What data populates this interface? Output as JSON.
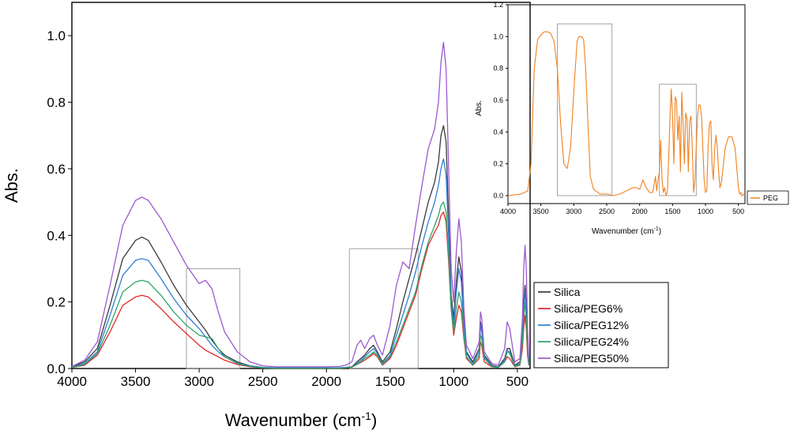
{
  "chart_data": [
    {
      "type": "line",
      "title": "",
      "xlabel": "Wavenumber (cm",
      "xlabel_sup": "-1",
      "xlabel_end": ")",
      "ylabel": "Abs.",
      "xlim": [
        4000,
        400
      ],
      "ylim": [
        0,
        1.1
      ],
      "x_reversed": true,
      "grid": false,
      "legend": "right",
      "xticks": [
        "4000",
        "3500",
        "3000",
        "2500",
        "2000",
        "1500",
        "1000",
        "500"
      ],
      "xtick_values": [
        4000,
        3500,
        3000,
        2500,
        2000,
        1500,
        1000,
        500
      ],
      "yticks": [
        "0.0",
        "0.2",
        "0.4",
        "0.6",
        "0.8",
        "1.0"
      ],
      "ytick_values": [
        0,
        0.2,
        0.4,
        0.6,
        0.8,
        1.0
      ],
      "highlight_regions": [
        {
          "x": [
            3100,
            2680
          ],
          "y": [
            0,
            0.3
          ]
        },
        {
          "x": [
            1820,
            1280
          ],
          "y": [
            0,
            0.36
          ]
        }
      ],
      "x": [
        4000,
        3900,
        3800,
        3700,
        3600,
        3500,
        3450,
        3400,
        3300,
        3200,
        3100,
        3000,
        2950,
        2900,
        2850,
        2800,
        2700,
        2600,
        2500,
        2400,
        2000,
        1900,
        1850,
        1800,
        1760,
        1730,
        1700,
        1660,
        1630,
        1600,
        1560,
        1500,
        1450,
        1400,
        1350,
        1300,
        1250,
        1200,
        1150,
        1120,
        1100,
        1080,
        1060,
        1040,
        1020,
        1000,
        980,
        960,
        940,
        920,
        900,
        850,
        800,
        790,
        780,
        760,
        700,
        650,
        600,
        580,
        560,
        520,
        480,
        460,
        450,
        440,
        430,
        420,
        410
      ],
      "series": [
        {
          "name": "Silica",
          "color": "#3a3a3a",
          "values": [
            0.005,
            0.02,
            0.06,
            0.19,
            0.33,
            0.385,
            0.395,
            0.385,
            0.32,
            0.25,
            0.19,
            0.14,
            0.115,
            0.085,
            0.06,
            0.04,
            0.02,
            0.008,
            0.003,
            0.002,
            0.002,
            0.002,
            0.003,
            0.005,
            0.02,
            0.03,
            0.04,
            0.06,
            0.07,
            0.05,
            0.02,
            0.05,
            0.12,
            0.2,
            0.27,
            0.34,
            0.42,
            0.5,
            0.56,
            0.62,
            0.7,
            0.73,
            0.68,
            0.45,
            0.22,
            0.15,
            0.26,
            0.335,
            0.29,
            0.14,
            0.05,
            0.02,
            0.06,
            0.14,
            0.12,
            0.04,
            0.01,
            0.005,
            0.03,
            0.06,
            0.06,
            0.01,
            0.02,
            0.1,
            0.2,
            0.25,
            0.2,
            0.08,
            0.02
          ]
        },
        {
          "name": "Silica/PEG6%",
          "color": "#e4282a",
          "values": [
            0.003,
            0.01,
            0.04,
            0.11,
            0.19,
            0.215,
            0.22,
            0.215,
            0.18,
            0.14,
            0.105,
            0.07,
            0.055,
            0.045,
            0.035,
            0.025,
            0.012,
            0.005,
            0.002,
            0.001,
            0.001,
            0.001,
            0.002,
            0.004,
            0.012,
            0.018,
            0.025,
            0.035,
            0.045,
            0.035,
            0.01,
            0.03,
            0.07,
            0.12,
            0.17,
            0.22,
            0.3,
            0.37,
            0.41,
            0.43,
            0.46,
            0.47,
            0.44,
            0.32,
            0.18,
            0.1,
            0.15,
            0.19,
            0.17,
            0.09,
            0.03,
            0.01,
            0.03,
            0.08,
            0.07,
            0.02,
            0.005,
            0.003,
            0.02,
            0.035,
            0.03,
            0.005,
            0.01,
            0.06,
            0.12,
            0.16,
            0.12,
            0.04,
            0.01
          ]
        },
        {
          "name": "Silica/PEG12%",
          "color": "#2f7fd6",
          "values": [
            0.004,
            0.015,
            0.05,
            0.16,
            0.28,
            0.325,
            0.33,
            0.325,
            0.27,
            0.21,
            0.16,
            0.12,
            0.095,
            0.07,
            0.05,
            0.035,
            0.017,
            0.007,
            0.003,
            0.002,
            0.002,
            0.002,
            0.003,
            0.005,
            0.015,
            0.025,
            0.035,
            0.05,
            0.06,
            0.045,
            0.015,
            0.04,
            0.1,
            0.16,
            0.22,
            0.29,
            0.37,
            0.44,
            0.5,
            0.55,
            0.6,
            0.63,
            0.58,
            0.4,
            0.2,
            0.13,
            0.23,
            0.3,
            0.26,
            0.13,
            0.045,
            0.015,
            0.05,
            0.13,
            0.11,
            0.035,
            0.008,
            0.004,
            0.025,
            0.055,
            0.05,
            0.008,
            0.015,
            0.09,
            0.18,
            0.23,
            0.18,
            0.07,
            0.015
          ]
        },
        {
          "name": "Silica/PEG24%",
          "color": "#2ea36a",
          "values": [
            0.003,
            0.012,
            0.045,
            0.13,
            0.23,
            0.26,
            0.265,
            0.26,
            0.22,
            0.17,
            0.13,
            0.1,
            0.095,
            0.09,
            0.06,
            0.035,
            0.015,
            0.006,
            0.002,
            0.001,
            0.001,
            0.001,
            0.002,
            0.005,
            0.012,
            0.02,
            0.03,
            0.04,
            0.05,
            0.04,
            0.012,
            0.035,
            0.08,
            0.13,
            0.18,
            0.23,
            0.31,
            0.38,
            0.43,
            0.46,
            0.49,
            0.5,
            0.47,
            0.34,
            0.18,
            0.11,
            0.18,
            0.23,
            0.2,
            0.1,
            0.035,
            0.01,
            0.04,
            0.1,
            0.09,
            0.03,
            0.006,
            0.003,
            0.02,
            0.05,
            0.045,
            0.006,
            0.012,
            0.08,
            0.15,
            0.2,
            0.15,
            0.06,
            0.012
          ]
        },
        {
          "name": "Silica/PEG50%",
          "color": "#9c59d1",
          "values": [
            0.006,
            0.025,
            0.08,
            0.25,
            0.43,
            0.505,
            0.515,
            0.505,
            0.45,
            0.38,
            0.31,
            0.255,
            0.265,
            0.24,
            0.17,
            0.11,
            0.05,
            0.02,
            0.008,
            0.005,
            0.005,
            0.006,
            0.01,
            0.02,
            0.07,
            0.085,
            0.06,
            0.09,
            0.1,
            0.07,
            0.04,
            0.13,
            0.25,
            0.32,
            0.3,
            0.43,
            0.55,
            0.66,
            0.72,
            0.8,
            0.92,
            0.98,
            0.9,
            0.6,
            0.3,
            0.2,
            0.35,
            0.45,
            0.38,
            0.18,
            0.07,
            0.03,
            0.08,
            0.17,
            0.15,
            0.05,
            0.015,
            0.01,
            0.06,
            0.14,
            0.12,
            0.02,
            0.03,
            0.15,
            0.3,
            0.37,
            0.3,
            0.12,
            0.03
          ]
        }
      ]
    },
    {
      "type": "line",
      "title": "",
      "xlabel": "Wavenumber (cm",
      "xlabel_sup": "-1",
      "xlabel_end": ")",
      "ylabel": "Abs.",
      "xlim": [
        4000,
        400
      ],
      "ylim": [
        -0.05,
        1.2
      ],
      "x_reversed": true,
      "grid": false,
      "legend": "right",
      "xticks": [
        "4000",
        "3500",
        "3000",
        "2500",
        "2000",
        "1500",
        "1000",
        "500"
      ],
      "xtick_values": [
        4000,
        3500,
        3000,
        2500,
        2000,
        1500,
        1000,
        500
      ],
      "yticks": [
        "0.0",
        "0.2",
        "0.4",
        "0.6",
        "0.8",
        "1.0",
        "1.2"
      ],
      "ytick_values": [
        0,
        0.2,
        0.4,
        0.6,
        0.8,
        1.0,
        1.2
      ],
      "highlight_regions": [
        {
          "x": [
            3250,
            2420
          ],
          "y": [
            0,
            1.08
          ]
        },
        {
          "x": [
            1700,
            1140
          ],
          "y": [
            0,
            0.7
          ]
        }
      ],
      "x": [
        4000,
        3800,
        3700,
        3650,
        3600,
        3550,
        3500,
        3450,
        3400,
        3350,
        3300,
        3250,
        3200,
        3150,
        3100,
        3050,
        3000,
        2950,
        2920,
        2880,
        2850,
        2820,
        2780,
        2750,
        2700,
        2600,
        2500,
        2400,
        2300,
        2200,
        2100,
        2050,
        2000,
        1980,
        1950,
        1900,
        1850,
        1800,
        1760,
        1740,
        1720,
        1700,
        1680,
        1660,
        1640,
        1620,
        1600,
        1580,
        1560,
        1540,
        1520,
        1500,
        1480,
        1460,
        1440,
        1420,
        1400,
        1380,
        1360,
        1340,
        1320,
        1300,
        1280,
        1260,
        1240,
        1220,
        1200,
        1180,
        1160,
        1140,
        1120,
        1100,
        1080,
        1060,
        1040,
        1020,
        1000,
        980,
        960,
        940,
        920,
        900,
        880,
        860,
        840,
        820,
        800,
        780,
        760,
        740,
        700,
        650,
        600,
        550,
        500,
        480,
        460,
        450,
        440,
        420,
        400
      ],
      "series": [
        {
          "name": "PEG",
          "color": "#f0821e",
          "values": [
            0.0,
            0.01,
            0.03,
            0.2,
            0.8,
            0.98,
            1.01,
            1.03,
            1.03,
            1.02,
            0.97,
            0.8,
            0.45,
            0.2,
            0.17,
            0.3,
            0.65,
            0.97,
            1.0,
            1.0,
            0.98,
            0.8,
            0.4,
            0.12,
            0.04,
            0.01,
            0.01,
            0.0,
            0.01,
            0.03,
            0.05,
            0.05,
            0.04,
            0.06,
            0.1,
            0.05,
            0.02,
            0.02,
            0.12,
            0.03,
            0.1,
            0.15,
            0.35,
            0.1,
            0.02,
            0.05,
            0.0,
            0.02,
            0.22,
            0.48,
            0.67,
            0.5,
            0.2,
            0.62,
            0.6,
            0.35,
            0.5,
            0.15,
            0.65,
            0.45,
            0.2,
            0.52,
            0.48,
            0.15,
            0.47,
            0.5,
            0.3,
            0.02,
            0.1,
            0.3,
            0.5,
            0.57,
            0.57,
            0.5,
            0.3,
            0.1,
            0.02,
            0.03,
            0.3,
            0.45,
            0.47,
            0.2,
            0.1,
            0.3,
            0.38,
            0.3,
            0.15,
            0.05,
            0.08,
            0.15,
            0.3,
            0.37,
            0.37,
            0.3,
            0.05,
            0.01,
            0.02,
            0.0,
            0.0,
            0.01,
            0.01
          ]
        }
      ]
    }
  ]
}
